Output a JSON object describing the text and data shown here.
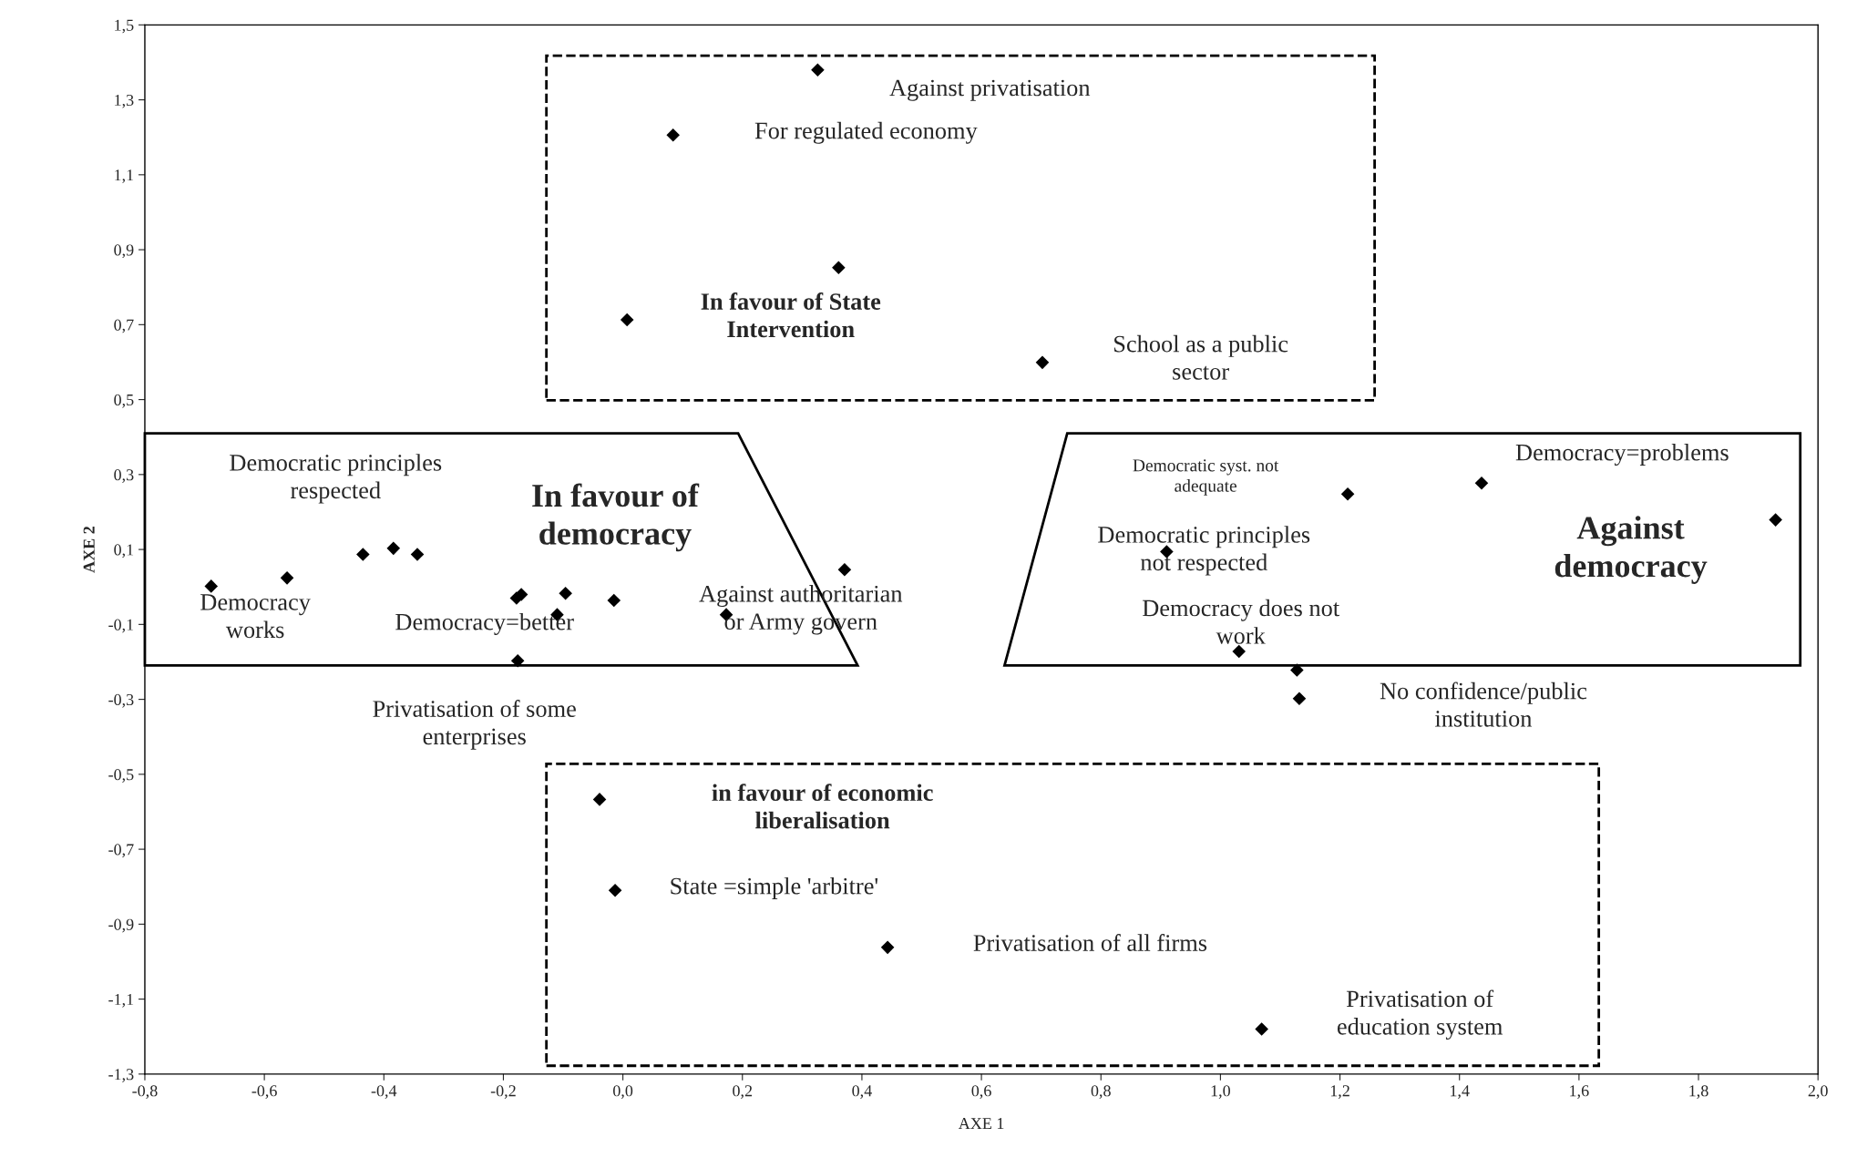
{
  "chart_data": {
    "type": "scatter",
    "xlabel": "AXE 1",
    "ylabel": "AXE 2",
    "marker": "diamond",
    "grid": false,
    "series": [
      {
        "color": "#000000",
        "x": [
          0.326,
          0.084,
          0.361,
          0.007,
          0.702,
          -0.689,
          -0.562,
          -0.435,
          -0.384,
          -0.344,
          -0.178,
          -0.17,
          -0.11,
          -0.096,
          -0.015,
          -0.176,
          0.173,
          0.371,
          1.213,
          1.437,
          1.929,
          0.91,
          1.031,
          1.128,
          1.132,
          -0.039,
          -0.013,
          0.443,
          1.069
        ],
        "values": [
          1.38,
          1.206,
          0.852,
          0.713,
          0.599,
          0.002,
          0.024,
          0.087,
          0.103,
          0.087,
          -0.03,
          -0.02,
          -0.074,
          -0.017,
          -0.036,
          -0.197,
          -0.074,
          0.046,
          0.248,
          0.277,
          0.179,
          0.094,
          -0.172,
          -0.222,
          -0.298,
          -0.567,
          -0.81,
          -0.962,
          -1.18
        ]
      }
    ],
    "xlim": [
      -0.8,
      2.0
    ],
    "ylim": [
      -1.3,
      1.5
    ],
    "xticks": [
      {
        "value": -0.8,
        "label": "-0,8"
      },
      {
        "value": -0.6,
        "label": "-0,6"
      },
      {
        "value": -0.4,
        "label": "-0,4"
      },
      {
        "value": -0.2,
        "label": "-0,2"
      },
      {
        "value": 0,
        "label": "0,0"
      },
      {
        "value": 0.2,
        "label": "0,2"
      },
      {
        "value": 0.4,
        "label": "0,4"
      },
      {
        "value": 0.6,
        "label": "0,6"
      },
      {
        "value": 0.8,
        "label": "0,8"
      },
      {
        "value": 1.0,
        "label": "1,0"
      },
      {
        "value": 1.2,
        "label": "1,2"
      },
      {
        "value": 1.4,
        "label": "1,4"
      },
      {
        "value": 1.6,
        "label": "1,6"
      },
      {
        "value": 1.8,
        "label": "1,8"
      },
      {
        "value": 2.0,
        "label": "2,0"
      }
    ],
    "yticks": [
      {
        "value": -1.3,
        "label": "-1,3"
      },
      {
        "value": -1.1,
        "label": "-1,1"
      },
      {
        "value": -0.9,
        "label": "-0,9"
      },
      {
        "value": -0.7,
        "label": "-0,7"
      },
      {
        "value": -0.5,
        "label": "-0,5"
      },
      {
        "value": -0.3,
        "label": "-0,3"
      },
      {
        "value": -0.1,
        "label": "-0,1"
      },
      {
        "value": 0.1,
        "label": "0,1"
      },
      {
        "value": 0.3,
        "label": "0,3"
      },
      {
        "value": 0.5,
        "label": "0,5"
      },
      {
        "value": 0.7,
        "label": "0,7"
      },
      {
        "value": 0.9,
        "label": "0,9"
      },
      {
        "value": 1.1,
        "label": "1,1"
      },
      {
        "value": 1.3,
        "label": "1,3"
      },
      {
        "value": 1.5,
        "label": "1,5"
      }
    ],
    "annotations": [
      "Against privatisation",
      "For regulated economy",
      "In favour of State\nIntervention",
      "School as a public\nsector",
      "Democratic principles\nrespected",
      "In favour of\ndemocracy",
      "Democracy\nworks",
      "Democracy=better",
      "Against authoritarian\nor Army govern",
      "Privatisation of some\nenterprises",
      "Democratic syst. not\nadequate",
      "Democratic principles\nnot respected",
      "Democracy does not\nwork",
      "Democracy=problems",
      "Against\ndemocracy",
      "No confidence/public\ninstitution",
      "in favour of economic\nliberalisation",
      "State =simple 'arbitre'",
      "Privatisation of all firms",
      "Privatisation of\neducation system"
    ]
  }
}
